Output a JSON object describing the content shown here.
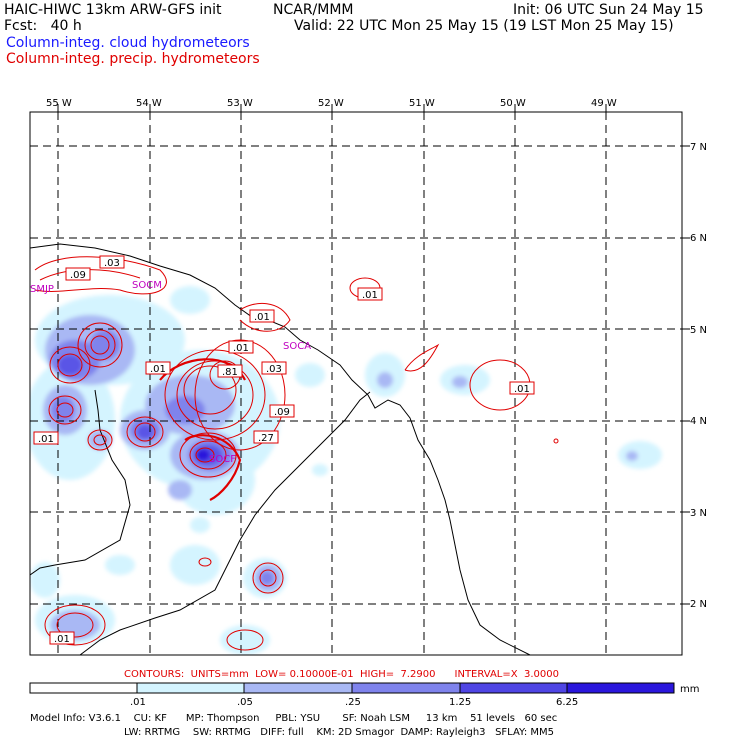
{
  "header": {
    "left1": "HAIC-HIWC 13km ARW-GFS init",
    "center1": "NCAR/MMM",
    "right1": "Init: 06 UTC Sun 24 May 15",
    "left2": "Fcst:   40 h",
    "right2": "Valid: 22 UTC Mon 25 May 15 (19 LST Mon 25 May 15)",
    "line3": "Column-integ. cloud hydrometeors",
    "line4": "Column-integ. precip. hydrometeors"
  },
  "colors": {
    "cloud_title": "#1a1aff",
    "precip_title": "#e00000",
    "shade1": "#d4f4ff",
    "shade2": "#a9b8f4",
    "shade3": "#7f83ec",
    "shade4": "#5a55e6",
    "shade5": "#3f34e2",
    "shade6": "#2a16dc",
    "contour": "#e00000",
    "station": "#c000c0"
  },
  "map": {
    "lon_labels": [
      "55 W",
      "54 W",
      "53 W",
      "52 W",
      "51 W",
      "50 W",
      "49 W"
    ],
    "lat_labels": [
      "7 N",
      "6 N",
      "5 N",
      "4 N",
      "3 N",
      "2 N"
    ],
    "stations": [
      "SMJP",
      "SOCM",
      "SOCA",
      "SOCF"
    ],
    "contour_labels": [
      ".03",
      ".09",
      ".01",
      ".01",
      ".01",
      ".01",
      ".81",
      ".03",
      ".09",
      ".27",
      ".01",
      ".01",
      ".01"
    ]
  },
  "contour_info": {
    "text": "CONTOURS:  UNITS=mm  LOW= 0.10000E-01  HIGH=  7.2900      INTERVAL=X  3.0000"
  },
  "colorbar": {
    "labels": [
      ".01",
      ".05",
      ".25",
      "1.25",
      "6.25"
    ],
    "unit": "mm"
  },
  "footer": {
    "line1": "Model Info: V3.6.1    CU: KF      MP: Thompson     PBL: YSU       SF: Noah LSM     13 km    51 levels   60 sec",
    "line2": "LW: RRTMG    SW: RRTMG   DIFF: full    KM: 2D Smagor  DAMP: Rayleigh3   SFLAY: MM5"
  }
}
